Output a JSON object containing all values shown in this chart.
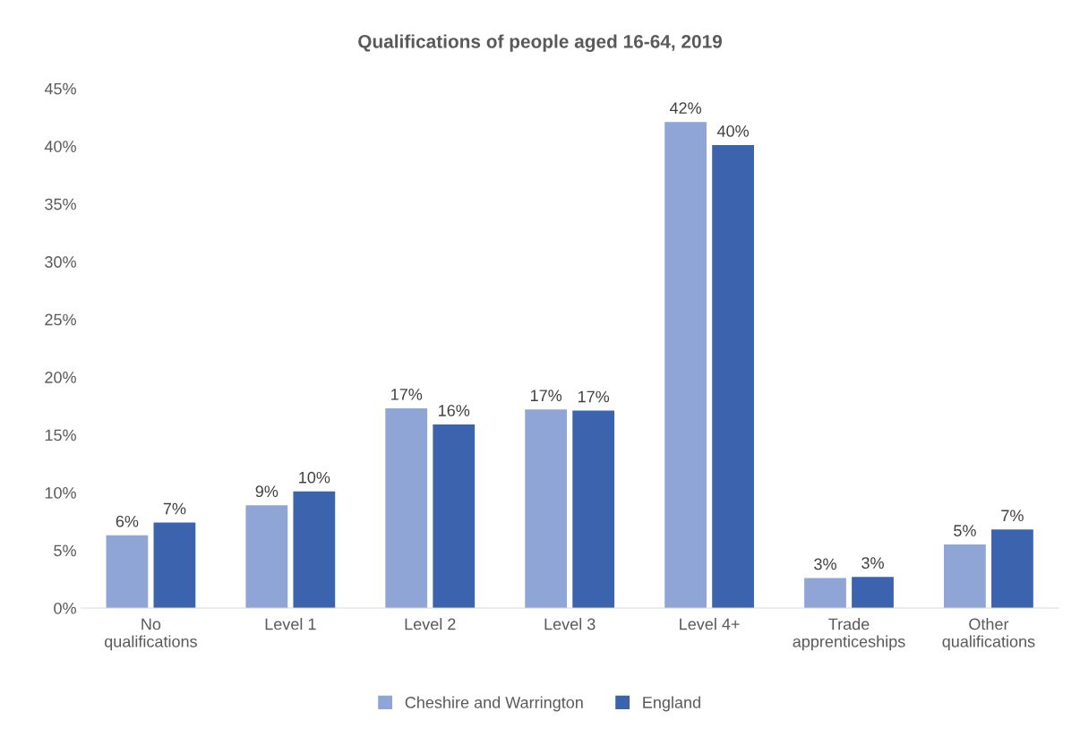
{
  "chart_data": {
    "type": "bar",
    "title": "Qualifications of people aged 16-64, 2019",
    "categories": [
      "No\nqualifications",
      "Level 1",
      "Level 2",
      "Level 3",
      "Level 4+",
      "Trade\napprenticeships",
      "Other\nqualifications"
    ],
    "series": [
      {
        "name": "Cheshire and Warrington",
        "color": "#8fa5d6",
        "values": [
          6.3,
          8.9,
          17.3,
          17.2,
          42.1,
          2.6,
          5.5
        ],
        "value_labels": [
          "6%",
          "9%",
          "17%",
          "17%",
          "42%",
          "3%",
          "5%"
        ]
      },
      {
        "name": "England",
        "color": "#3c64ae",
        "values": [
          7.4,
          10.1,
          15.9,
          17.1,
          40.1,
          2.7,
          6.8
        ],
        "value_labels": [
          "7%",
          "10%",
          "16%",
          "17%",
          "40%",
          "3%",
          "7%"
        ]
      }
    ],
    "ylim": [
      0,
      45
    ],
    "yticks": [
      {
        "value": 0,
        "label": "0%"
      },
      {
        "value": 5,
        "label": "5%"
      },
      {
        "value": 10,
        "label": "10%"
      },
      {
        "value": 15,
        "label": "15%"
      },
      {
        "value": 20,
        "label": "20%"
      },
      {
        "value": 25,
        "label": "25%"
      },
      {
        "value": 30,
        "label": "30%"
      },
      {
        "value": 35,
        "label": "35%"
      },
      {
        "value": 40,
        "label": "40%"
      },
      {
        "value": 45,
        "label": "45%"
      }
    ],
    "grid": false,
    "legend": "bottom"
  }
}
